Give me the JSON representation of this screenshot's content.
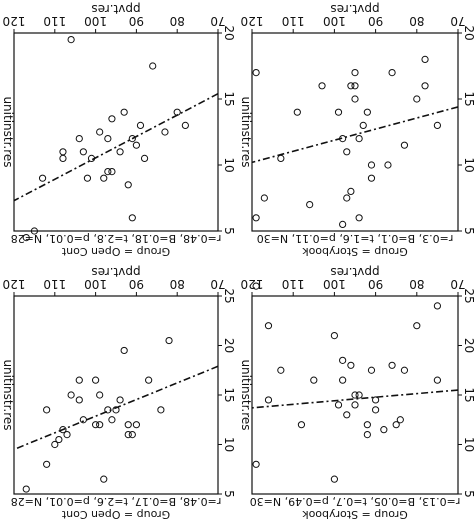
{
  "chart_data": [
    {
      "type": "scatter",
      "title": "",
      "group_label": "Group = Storybook",
      "stats_label": "r=0.3, B=0.1, t=1.6, p=0.11, N=30",
      "xlabel": "ppvt.res",
      "ylabel": "unitinstr.res",
      "xlim": [
        70,
        120
      ],
      "ylim": [
        20,
        5
      ],
      "xticks": [
        "70",
        "80",
        "90",
        "100",
        "110",
        "120"
      ],
      "yticks": [
        "5",
        "10",
        "15",
        "20"
      ],
      "fit_line": [
        [
          70,
          14.4
        ],
        [
          120,
          10.2
        ]
      ],
      "x": [
        75,
        78,
        78,
        80,
        83,
        86,
        87,
        91,
        91,
        92,
        93,
        94,
        94,
        95,
        95,
        95,
        96,
        96,
        97,
        97,
        98,
        98,
        99,
        103,
        106,
        109,
        113,
        119,
        117,
        119
      ],
      "y": [
        13.0,
        18.0,
        16.0,
        15.0,
        11.5,
        17.0,
        10.0,
        10.0,
        9.0,
        14.0,
        13.0,
        6.0,
        12.0,
        17.0,
        16.0,
        15.0,
        16.0,
        8.0,
        7.5,
        11.0,
        12.0,
        5.5,
        14.0,
        16.0,
        7.0,
        14.0,
        10.5,
        17.0,
        7.5,
        6.0
      ]
    },
    {
      "type": "scatter",
      "title": "",
      "group_label": "Group = Open Cont",
      "stats_label": "r=0.48, B=0.18, t=2.8, p=0.01, N=28",
      "xlabel": "ppvt.res",
      "ylabel": "unitinstr.res",
      "xlim": [
        70,
        120
      ],
      "ylim": [
        20,
        5
      ],
      "xticks": [
        "70",
        "80",
        "90",
        "100",
        "110",
        "120"
      ],
      "yticks": [
        "5",
        "10",
        "15",
        "20"
      ],
      "fit_line": [
        [
          70,
          15.4
        ],
        [
          120,
          7.3
        ]
      ],
      "x": [
        78,
        80,
        83,
        86,
        88,
        89,
        90,
        91,
        91,
        92,
        93,
        94,
        96,
        96,
        97,
        97,
        98,
        99,
        101,
        102,
        103,
        104,
        106,
        108,
        108,
        113,
        115,
        117
      ],
      "y": [
        13.0,
        14.0,
        12.5,
        17.5,
        10.5,
        13.0,
        11.5,
        12.0,
        6.0,
        8.5,
        14.0,
        11.0,
        9.5,
        13.5,
        12.0,
        9.5,
        9.0,
        12.5,
        10.5,
        9.0,
        11.0,
        12.0,
        19.5,
        11.0,
        10.5,
        9.0,
        5.0,
        4.5
      ]
    },
    {
      "type": "scatter",
      "title": "",
      "group_label": "Group = Storybook",
      "stats_label": "r=0.13, B=0.05, t=0.7, p=0.49, N=30",
      "xlabel": "ppvt.res",
      "ylabel": "unitinstr.res",
      "xlim": [
        70,
        120
      ],
      "ylim": [
        25,
        5
      ],
      "xticks": [
        "70",
        "80",
        "90",
        "100",
        "110",
        "120"
      ],
      "yticks": [
        "5",
        "10",
        "15",
        "20",
        "25"
      ],
      "fit_line": [
        [
          70,
          15.5
        ],
        [
          120,
          13.7
        ]
      ],
      "x": [
        75,
        75,
        80,
        83,
        84,
        85,
        86,
        88,
        90,
        90,
        91,
        92,
        92,
        94,
        95,
        95,
        96,
        97,
        98,
        98,
        99,
        100,
        100,
        105,
        108,
        113,
        116,
        116,
        119,
        119
      ],
      "y": [
        16.5,
        24.0,
        22.0,
        17.5,
        12.5,
        12.0,
        18.0,
        11.5,
        14.5,
        13.5,
        17.5,
        12.0,
        11.0,
        15.0,
        15.0,
        14.0,
        18.0,
        13.0,
        16.5,
        18.5,
        14.0,
        21.0,
        6.5,
        16.5,
        12.0,
        17.5,
        14.5,
        22.0,
        26.0,
        8.0
      ]
    },
    {
      "type": "scatter",
      "title": "",
      "group_label": "Group = Open Cont",
      "stats_label": "r=0.48, B=0.17, t=2.6, p=0.01, N=28",
      "xlabel": "ppvt.res",
      "ylabel": "unitinstr.res",
      "xlim": [
        70,
        120
      ],
      "ylim": [
        25,
        5
      ],
      "xticks": [
        "70",
        "80",
        "90",
        "100",
        "110",
        "120"
      ],
      "yticks": [
        "5",
        "10",
        "15",
        "20",
        "25"
      ],
      "fit_line": [
        [
          70,
          17.9
        ],
        [
          120,
          9.5
        ]
      ],
      "x": [
        82,
        84,
        87,
        90,
        91,
        92,
        92,
        93,
        94,
        95,
        96,
        97,
        98,
        99,
        99,
        100,
        100,
        103,
        104,
        106,
        107,
        108,
        109,
        110,
        112,
        112,
        104,
        117
      ],
      "y": [
        20.5,
        13.5,
        16.5,
        12.0,
        11.0,
        12.0,
        11.0,
        19.5,
        14.5,
        13.5,
        12.5,
        13.5,
        6.5,
        12.0,
        15.0,
        12.0,
        16.5,
        12.5,
        16.5,
        15.0,
        11.0,
        11.5,
        10.5,
        10.0,
        13.5,
        8.0,
        14.5,
        5.5
      ]
    }
  ]
}
